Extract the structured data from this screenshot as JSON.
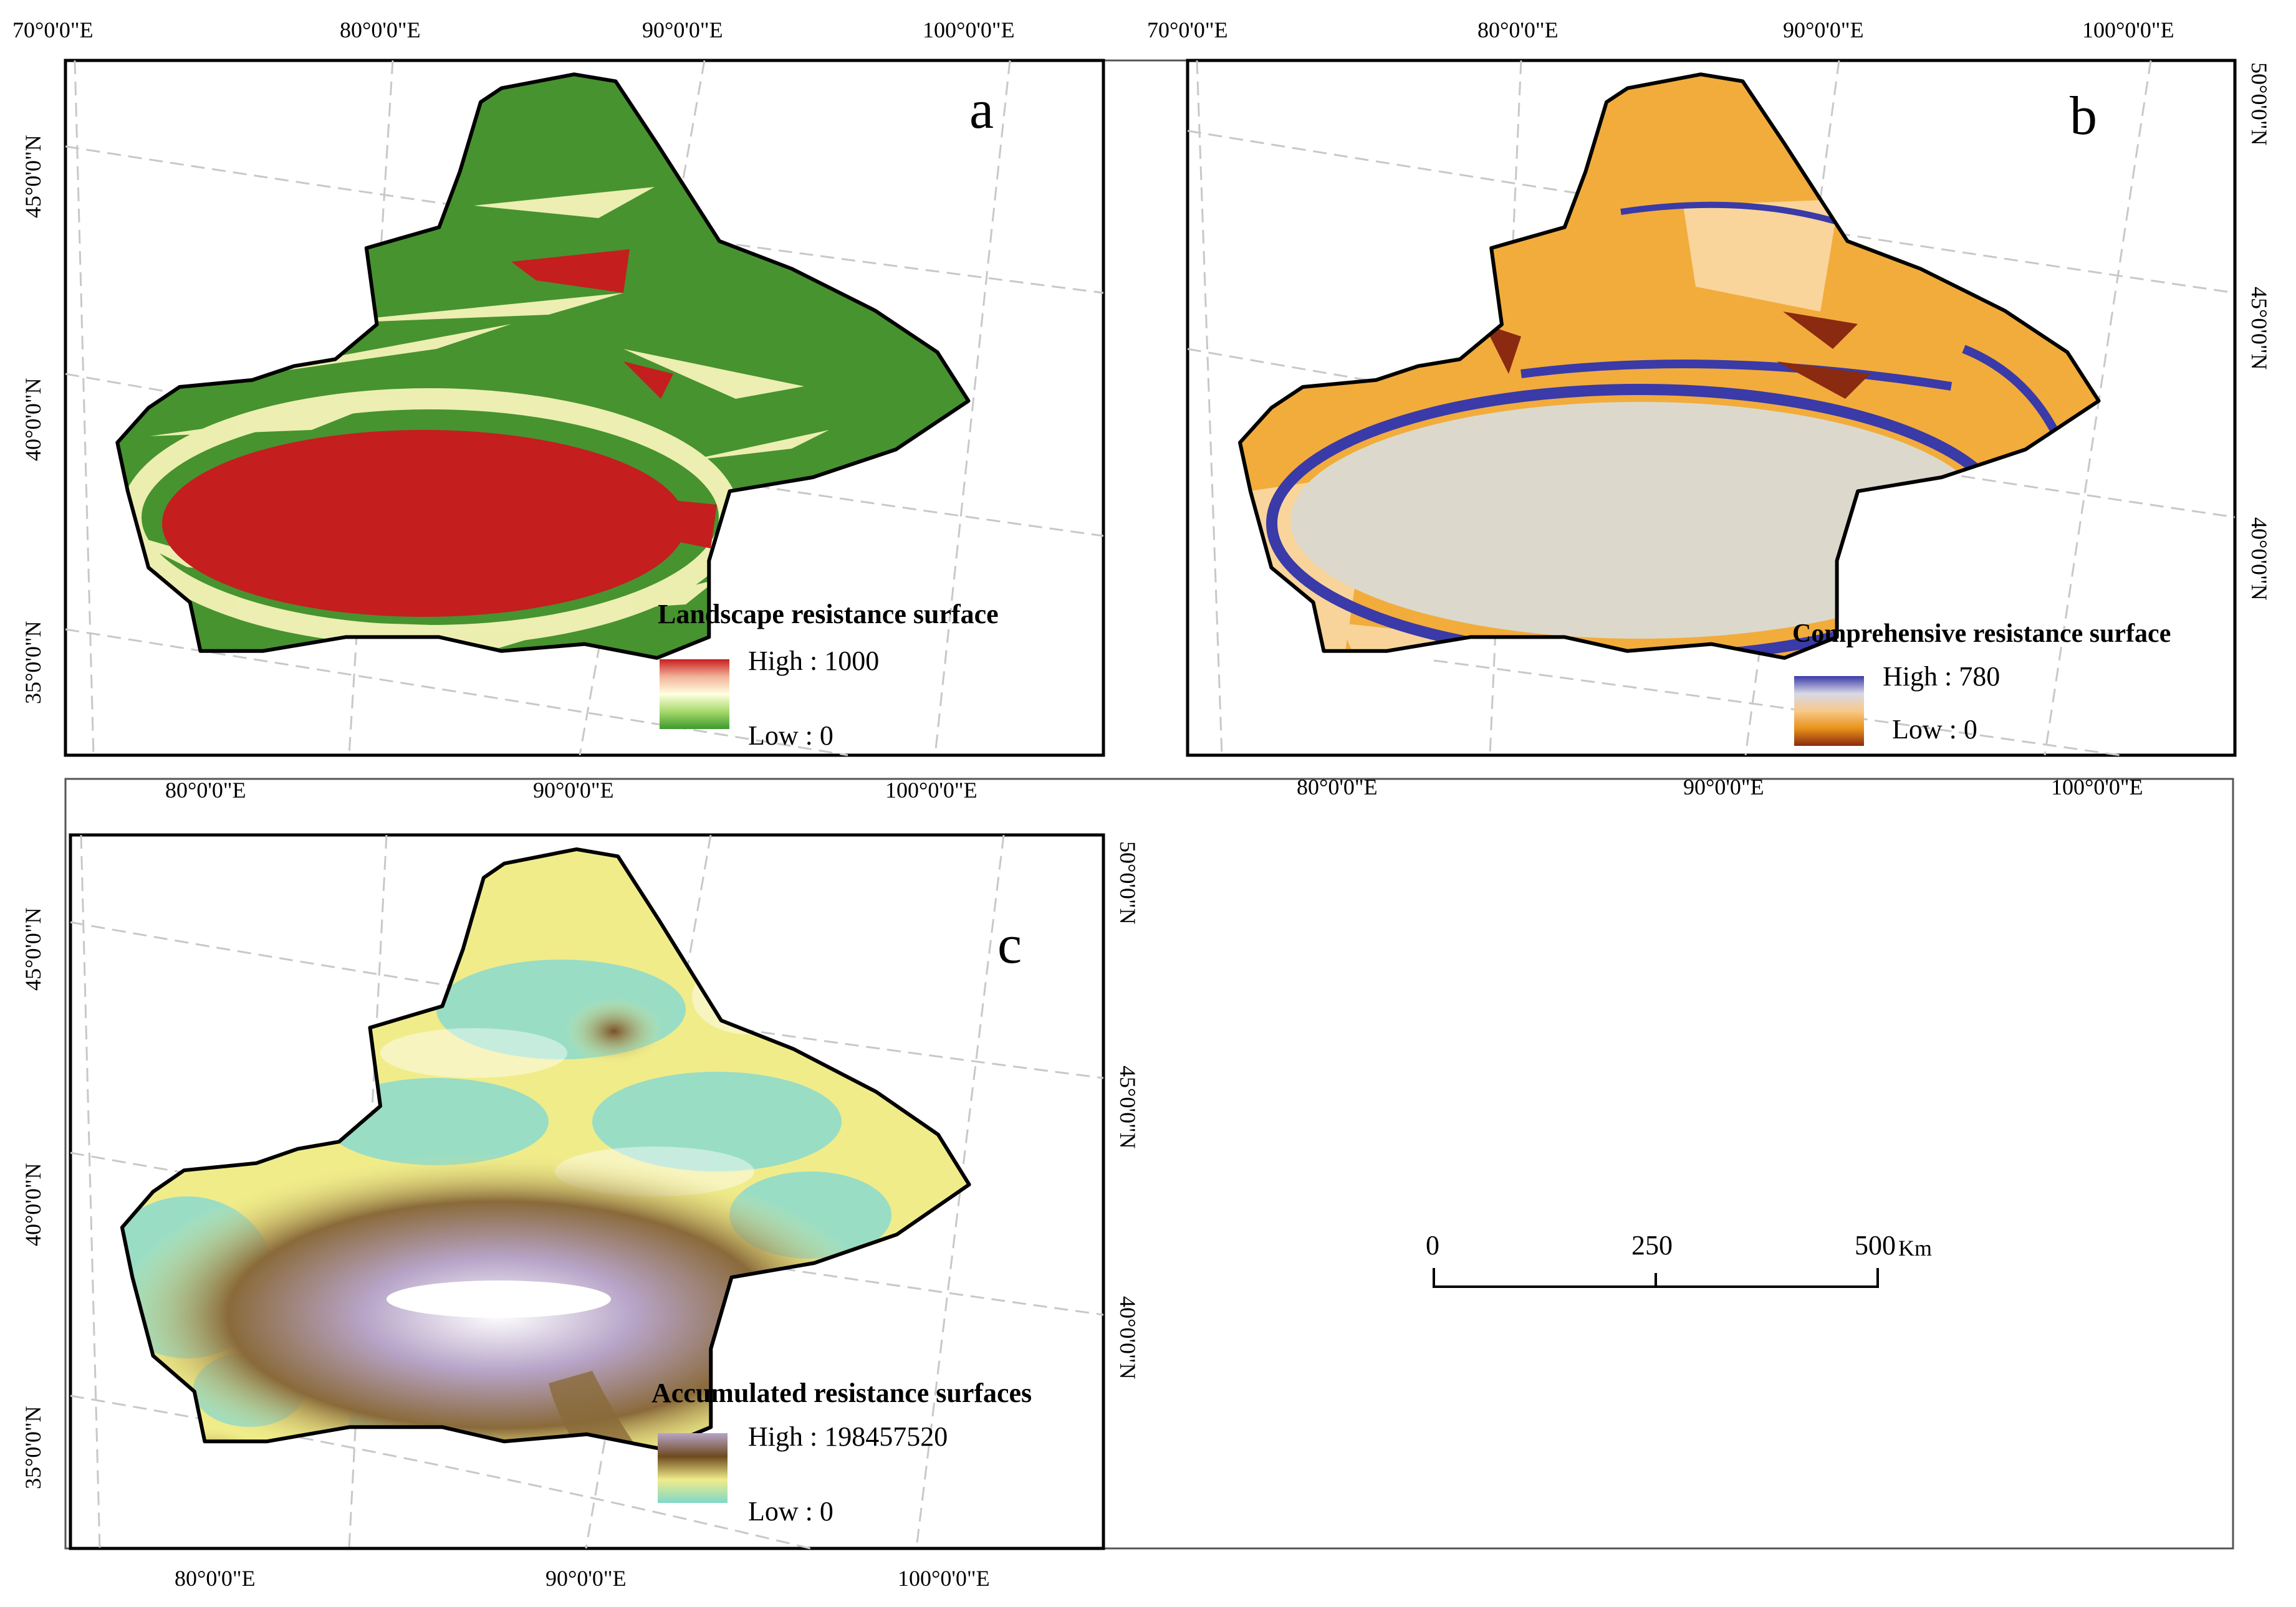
{
  "figure": {
    "panels": [
      {
        "id": "a",
        "letter": "a",
        "legend": {
          "title": "Landscape resistance surface",
          "high": "High : 1000",
          "low": "Low : 0",
          "ramp": [
            "#c81e1e",
            "#f2b39a",
            "#ffffe0",
            "#a6d96a",
            "#3c9a2e"
          ]
        },
        "top_labels": [
          "70°0'0\"E",
          "80°0'0\"E",
          "90°0'0\"E",
          "100°0'0\"E"
        ],
        "left_labels": [
          "45°0'0\"N",
          "40°0'0\"N",
          "35°0'0\"N"
        ],
        "bottom_labels": [
          "80°0'0\"E",
          "90°0'0\"E",
          "100°0'0\"E"
        ],
        "right_labels": []
      },
      {
        "id": "b",
        "letter": "b",
        "legend": {
          "title": "Comprehensive resistance surface",
          "high": "High : 780",
          "low": "Low : 0",
          "ramp": [
            "#3a3aa8",
            "#d8d8e8",
            "#f7c98a",
            "#e8921a",
            "#8a2a10"
          ]
        },
        "top_labels": [
          "70°0'0\"E",
          "80°0'0\"E",
          "90°0'0\"E",
          "100°0'0\"E"
        ],
        "left_labels": [],
        "bottom_labels": [
          "80°0'0\"E",
          "90°0'0\"E",
          "100°0'0\"E"
        ],
        "right_labels": [
          "50°0'0\"N",
          "45°0'0\"N",
          "40°0'0\"N"
        ]
      },
      {
        "id": "c",
        "letter": "c",
        "legend": {
          "title": "Accumulated resistance surfaces",
          "high": "High : 198457520",
          "low": "Low : 0",
          "ramp": [
            "#b7a4c8",
            "#6e4a1e",
            "#f0ec8a",
            "#7fd8c8"
          ]
        },
        "top_labels": [],
        "left_labels": [
          "45°0'0\"N",
          "40°0'0\"N",
          "35°0'0\"N"
        ],
        "bottom_labels": [
          "80°0'0\"E",
          "90°0'0\"E",
          "100°0'0\"E"
        ],
        "right_labels": [
          "50°0'0\"N",
          "45°0'0\"N",
          "40°0'0\"N"
        ]
      }
    ],
    "scale_bar": {
      "ticks": [
        "0",
        "250",
        "500"
      ],
      "unit": "Km"
    }
  }
}
